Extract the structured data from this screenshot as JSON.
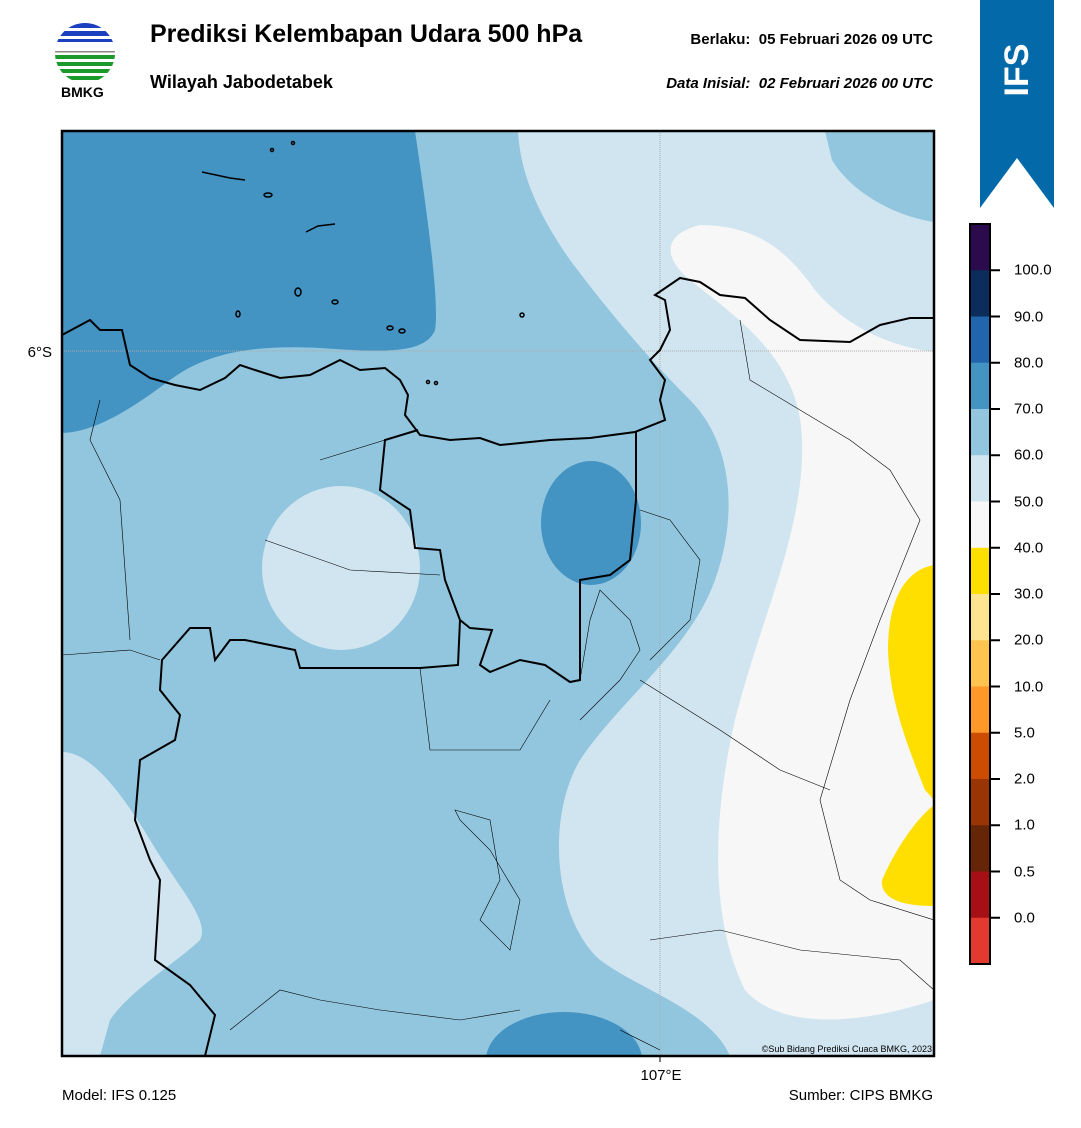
{
  "header": {
    "title": "Prediksi Kelembapan Udara 500 hPa",
    "subtitle": "Wilayah Jabodetabek",
    "valid": "Berlaku:  05 Februari 2026 09 UTC",
    "init": "Data Inisial:  02 Februari 2026 00 UTC",
    "logo_text": "BMKG",
    "model_badge": "IFS"
  },
  "map": {
    "lat_label": "6°S",
    "lon_label": "107°E",
    "credit": "©Sub Bidang Prediksi Cuaca BMKG, 2023"
  },
  "colorbar": {
    "colors": [
      "#2b0b4d",
      "#0c2c5c",
      "#2166ac",
      "#4393c3",
      "#92c5de",
      "#d1e5f0",
      "#f7f7f7",
      "#ffdf00",
      "#fee391",
      "#fec44f",
      "#fe9929",
      "#cc4c02",
      "#993404",
      "#662506",
      "#a50f15",
      "#e3392e"
    ],
    "labels": [
      "100.0",
      "90.0",
      "80.0",
      "70.0",
      "60.0",
      "50.0",
      "40.0",
      "30.0",
      "20.0",
      "10.0",
      "5.0",
      "2.0",
      "1.0",
      "0.5",
      "0.0"
    ]
  },
  "footer": {
    "model": "Model: IFS 0.125",
    "source": "Sumber: CIPS BMKG"
  }
}
